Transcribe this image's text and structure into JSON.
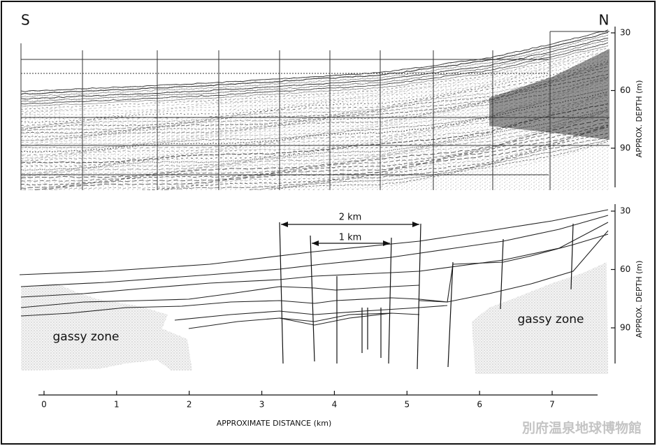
{
  "top_profile": {
    "south_label": "S",
    "north_label": "N",
    "depth_ticks": [
      30,
      60,
      90
    ],
    "depth_axis_label": "APPROX. DEPTH (m)"
  },
  "bottom_profile": {
    "scale_bars": [
      "2 km",
      "1 km"
    ],
    "zones": [
      "gassy zone",
      "gassy zone"
    ],
    "depth_ticks": [
      30,
      60,
      90
    ],
    "depth_axis_label": "APPROX. DEPTH (m)"
  },
  "distance_axis": {
    "ticks": [
      0,
      1,
      2,
      3,
      4,
      5,
      6,
      7
    ],
    "label": "APPROXIMATE DISTANCE (km)"
  },
  "watermark": "別府温泉地球博物館"
}
